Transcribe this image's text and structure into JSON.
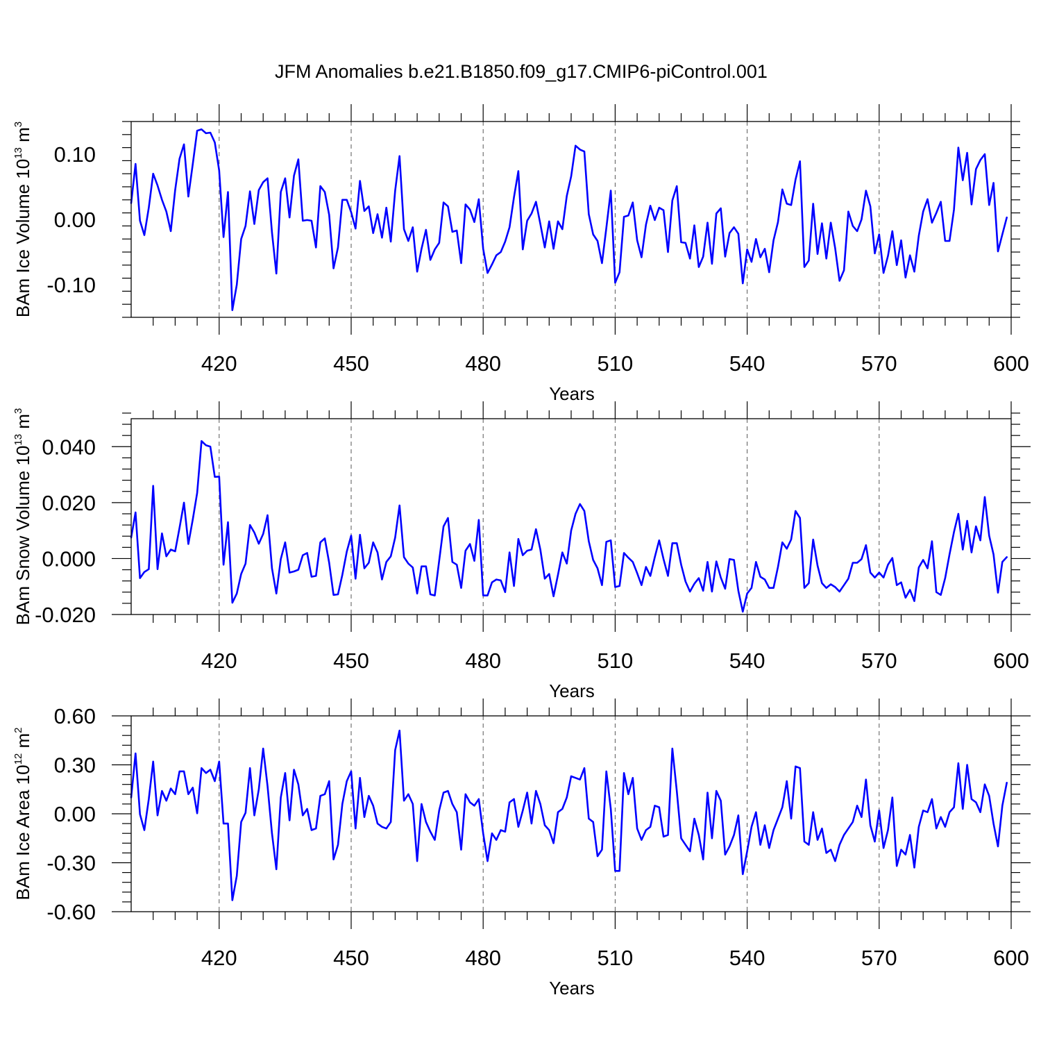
{
  "figure": {
    "title": "JFM Anomalies b.e21.B1850.f09_g17.CMIP6-piControl.001",
    "line_color": "#0000ff"
  },
  "chart_data": [
    {
      "type": "line",
      "title": "",
      "xlabel": "Years",
      "ylabel": {
        "prefix": "BAm Ice Volume 10",
        "exponent": "13",
        "unit": " m",
        "unit_exponent": "3"
      },
      "xlim": [
        400,
        600
      ],
      "ylim": [
        -0.15,
        0.15
      ],
      "xticks": [
        420,
        450,
        480,
        510,
        540,
        570,
        600
      ],
      "yticks": [
        -0.1,
        0.0,
        0.1
      ],
      "ytick_labels": [
        "-0.10",
        "0.00",
        "0.10"
      ],
      "grid": "dashed vertical lines at labeled x ticks",
      "series": [
        {
          "x_start": 400,
          "x_step": 1,
          "values": [
            0.025,
            0.085,
            -0.002,
            -0.024,
            0.018,
            0.07,
            0.052,
            0.03,
            0.012,
            -0.018,
            0.045,
            0.093,
            0.115,
            0.035,
            0.085,
            0.136,
            0.138,
            0.132,
            0.133,
            0.118,
            0.075,
            -0.027,
            0.042,
            -0.139,
            -0.1,
            -0.03,
            -0.01,
            0.043,
            -0.007,
            0.045,
            0.057,
            0.063,
            -0.02,
            -0.083,
            0.042,
            0.063,
            0.003,
            0.067,
            0.092,
            -0.002,
            -0.001,
            -0.002,
            -0.043,
            0.051,
            0.042,
            0.007,
            -0.075,
            -0.043,
            0.03,
            0.03,
            0.011,
            -0.014,
            0.059,
            0.013,
            0.02,
            -0.021,
            0.008,
            -0.028,
            0.018,
            -0.034,
            0.044,
            0.097,
            -0.015,
            -0.033,
            -0.012,
            -0.08,
            -0.045,
            -0.016,
            -0.062,
            -0.046,
            -0.036,
            0.026,
            0.02,
            -0.019,
            -0.017,
            -0.067,
            0.023,
            0.015,
            -0.004,
            0.031,
            -0.045,
            -0.082,
            -0.069,
            -0.055,
            -0.05,
            -0.034,
            -0.012,
            0.034,
            0.074,
            -0.046,
            -0.002,
            0.009,
            0.027,
            -0.007,
            -0.043,
            -0.003,
            -0.045,
            -0.003,
            -0.015,
            0.036,
            0.066,
            0.113,
            0.107,
            0.104,
            0.008,
            -0.023,
            -0.033,
            -0.067,
            -0.013,
            0.044,
            -0.097,
            -0.081,
            0.004,
            0.006,
            0.026,
            -0.032,
            -0.058,
            -0.008,
            0.021,
            -0.001,
            0.018,
            0.014,
            -0.05,
            0.029,
            0.051,
            -0.035,
            -0.036,
            -0.06,
            -0.009,
            -0.073,
            -0.057,
            -0.005,
            -0.068,
            0.009,
            0.017,
            -0.057,
            -0.021,
            -0.012,
            -0.022,
            -0.098,
            -0.046,
            -0.065,
            -0.03,
            -0.058,
            -0.045,
            -0.081,
            -0.032,
            -0.004,
            0.046,
            0.024,
            0.022,
            0.061,
            0.089,
            -0.073,
            -0.063,
            0.024,
            -0.053,
            -0.006,
            -0.06,
            -0.005,
            -0.044,
            -0.094,
            -0.078,
            0.012,
            -0.01,
            -0.018,
            0.0,
            0.044,
            0.02,
            -0.052,
            -0.023,
            -0.082,
            -0.056,
            -0.018,
            -0.07,
            -0.032,
            -0.089,
            -0.055,
            -0.08,
            -0.025,
            0.012,
            0.031,
            -0.005,
            0.01,
            0.027,
            -0.033,
            -0.033,
            0.015,
            0.11,
            0.06,
            0.102,
            0.023,
            0.077,
            0.091,
            0.1,
            0.022,
            0.056,
            -0.049,
            -0.023,
            0.003
          ]
        }
      ]
    },
    {
      "type": "line",
      "title": "",
      "xlabel": "Years",
      "ylabel": {
        "prefix": "BAm Snow Volume 10",
        "exponent": "13",
        "unit": " m",
        "unit_exponent": "3"
      },
      "xlim": [
        400,
        600
      ],
      "ylim": [
        -0.02,
        0.05
      ],
      "xticks": [
        420,
        450,
        480,
        510,
        540,
        570,
        600
      ],
      "yticks": [
        -0.02,
        0.0,
        0.02,
        0.04
      ],
      "ytick_labels": [
        "-0.020",
        "0.000",
        "0.020",
        "0.040"
      ],
      "grid": "dashed vertical lines at labeled x ticks",
      "series": [
        {
          "x_start": 400,
          "x_step": 1,
          "values": [
            0.0075,
            0.0165,
            -0.007,
            -0.0048,
            -0.0038,
            0.026,
            -0.0038,
            0.009,
            0.0008,
            0.0032,
            0.0026,
            0.011,
            0.02,
            0.0052,
            0.014,
            0.0235,
            0.042,
            0.0405,
            0.04,
            0.0292,
            0.0293,
            -0.0022,
            0.013,
            -0.0158,
            -0.0125,
            -0.0055,
            -0.0018,
            0.012,
            0.0093,
            0.0053,
            0.0088,
            0.0155,
            -0.0035,
            -0.0125,
            -0.0002,
            0.0058,
            -0.005,
            -0.0046,
            -0.004,
            0.0012,
            0.002,
            -0.0065,
            -0.0062,
            0.0058,
            0.0072,
            -0.0015,
            -0.013,
            -0.0128,
            -0.0058,
            0.0025,
            0.0082,
            -0.0072,
            0.0085,
            -0.0035,
            -0.0015,
            0.0058,
            0.0022,
            -0.0075,
            -0.0012,
            0.0008,
            0.0075,
            0.019,
            0.0005,
            -0.0018,
            -0.0032,
            -0.0125,
            -0.0028,
            -0.0028,
            -0.0128,
            -0.0132,
            -0.0008,
            0.0115,
            0.0145,
            -0.0012,
            -0.0022,
            -0.0105,
            0.0028,
            0.0052,
            -0.0008,
            0.0138,
            -0.0132,
            -0.0132,
            -0.0085,
            -0.0075,
            -0.0078,
            -0.012,
            0.0022,
            -0.0098,
            0.007,
            0.0012,
            0.0028,
            0.0032,
            0.0105,
            0.0032,
            -0.0072,
            -0.0055,
            -0.0135,
            -0.0058,
            0.0022,
            -0.0018,
            0.01,
            0.016,
            0.0195,
            0.017,
            0.0062,
            -0.0005,
            -0.0035,
            -0.0095,
            0.006,
            0.0065,
            -0.0102,
            -0.0098,
            0.002,
            0.0003,
            -0.0012,
            -0.0052,
            -0.0095,
            -0.003,
            -0.0062,
            0.0005,
            0.0065,
            -0.0002,
            -0.0062,
            0.0055,
            0.0055,
            -0.0022,
            -0.0082,
            -0.0118,
            -0.009,
            -0.007,
            -0.0115,
            -0.0012,
            -0.0118,
            -0.001,
            -0.0068,
            -0.0108,
            -0.0002,
            -0.0005,
            -0.0115,
            -0.019,
            -0.0125,
            -0.0105,
            -0.0012,
            -0.0065,
            -0.0075,
            -0.0105,
            -0.0105,
            -0.003,
            0.0058,
            0.0035,
            0.0068,
            0.017,
            0.0145,
            -0.0105,
            -0.0088,
            0.0068,
            -0.0025,
            -0.0088,
            -0.0105,
            -0.0092,
            -0.0102,
            -0.0118,
            -0.0095,
            -0.0072,
            -0.0015,
            -0.0015,
            -0.0002,
            0.0048,
            -0.005,
            -0.0068,
            -0.005,
            -0.0068,
            -0.0022,
            0.0002,
            -0.0095,
            -0.0085,
            -0.014,
            -0.0112,
            -0.0152,
            -0.0032,
            -0.0005,
            -0.0035,
            0.0062,
            -0.012,
            -0.013,
            -0.007,
            0.0015,
            0.0095,
            0.016,
            0.0032,
            0.0135,
            0.0022,
            0.0115,
            0.0065,
            0.022,
            0.0082,
            0.0015,
            -0.0122,
            -0.0012,
            0.0005
          ]
        }
      ]
    },
    {
      "type": "line",
      "title": "",
      "xlabel": "Years",
      "ylabel": {
        "prefix": "BAm Ice Area 10",
        "exponent": "12",
        "unit": " m",
        "unit_exponent": "2"
      },
      "xlim": [
        400,
        600
      ],
      "ylim": [
        -0.6,
        0.6
      ],
      "xticks": [
        420,
        450,
        480,
        510,
        540,
        570,
        600
      ],
      "yticks": [
        -0.6,
        -0.3,
        0.0,
        0.3,
        0.6
      ],
      "ytick_labels": [
        "-0.60",
        "-0.30",
        "0.00",
        "0.30",
        "0.60"
      ],
      "grid": "dashed vertical lines at labeled x ticks",
      "series": [
        {
          "x_start": 400,
          "x_step": 1,
          "values": [
            0.1,
            0.37,
            -0.003,
            -0.1,
            0.09,
            0.32,
            -0.01,
            0.14,
            0.08,
            0.155,
            0.12,
            0.26,
            0.26,
            0.12,
            0.16,
            0.003,
            0.28,
            0.25,
            0.27,
            0.2,
            0.32,
            -0.06,
            -0.06,
            -0.53,
            -0.38,
            -0.05,
            0.006,
            0.28,
            -0.01,
            0.15,
            0.4,
            0.17,
            -0.12,
            -0.34,
            0.1,
            0.25,
            -0.04,
            0.27,
            0.18,
            -0.01,
            0.03,
            -0.1,
            -0.09,
            0.11,
            0.12,
            0.2,
            -0.28,
            -0.19,
            0.06,
            0.2,
            0.26,
            -0.09,
            0.22,
            -0.02,
            0.11,
            0.05,
            -0.06,
            -0.08,
            -0.09,
            -0.05,
            0.39,
            0.51,
            0.08,
            0.12,
            0.06,
            -0.29,
            0.06,
            -0.05,
            -0.11,
            -0.16,
            0.02,
            0.13,
            0.14,
            0.06,
            0.01,
            -0.22,
            0.12,
            0.07,
            0.05,
            0.09,
            -0.12,
            -0.29,
            -0.12,
            -0.16,
            -0.1,
            -0.11,
            0.07,
            0.09,
            -0.08,
            0.02,
            0.13,
            -0.06,
            0.14,
            0.06,
            -0.07,
            -0.1,
            -0.18,
            0.01,
            0.03,
            0.1,
            0.23,
            0.22,
            0.21,
            0.28,
            -0.03,
            -0.05,
            -0.26,
            -0.22,
            0.26,
            0.03,
            -0.35,
            -0.35,
            0.25,
            0.12,
            0.22,
            -0.09,
            -0.16,
            -0.1,
            -0.08,
            0.05,
            0.04,
            -0.14,
            -0.13,
            0.4,
            0.14,
            -0.15,
            -0.19,
            -0.23,
            -0.03,
            -0.13,
            -0.28,
            0.13,
            -0.15,
            0.14,
            0.08,
            -0.25,
            -0.2,
            -0.13,
            -0.01,
            -0.37,
            -0.23,
            -0.08,
            0.01,
            -0.19,
            -0.07,
            -0.21,
            -0.1,
            -0.03,
            0.04,
            0.2,
            -0.03,
            0.29,
            0.28,
            -0.17,
            -0.19,
            0.01,
            -0.16,
            -0.09,
            -0.24,
            -0.22,
            -0.29,
            -0.19,
            -0.13,
            -0.09,
            -0.05,
            0.05,
            -0.02,
            0.21,
            -0.07,
            -0.17,
            0.02,
            -0.21,
            -0.1,
            0.1,
            -0.32,
            -0.22,
            -0.25,
            -0.13,
            -0.33,
            -0.08,
            0.02,
            0.01,
            0.09,
            -0.09,
            -0.02,
            -0.08,
            0.01,
            0.04,
            0.31,
            0.03,
            0.3,
            0.09,
            0.07,
            0.01,
            0.18,
            0.11,
            -0.06,
            -0.2,
            0.05,
            0.19
          ]
        }
      ]
    }
  ]
}
